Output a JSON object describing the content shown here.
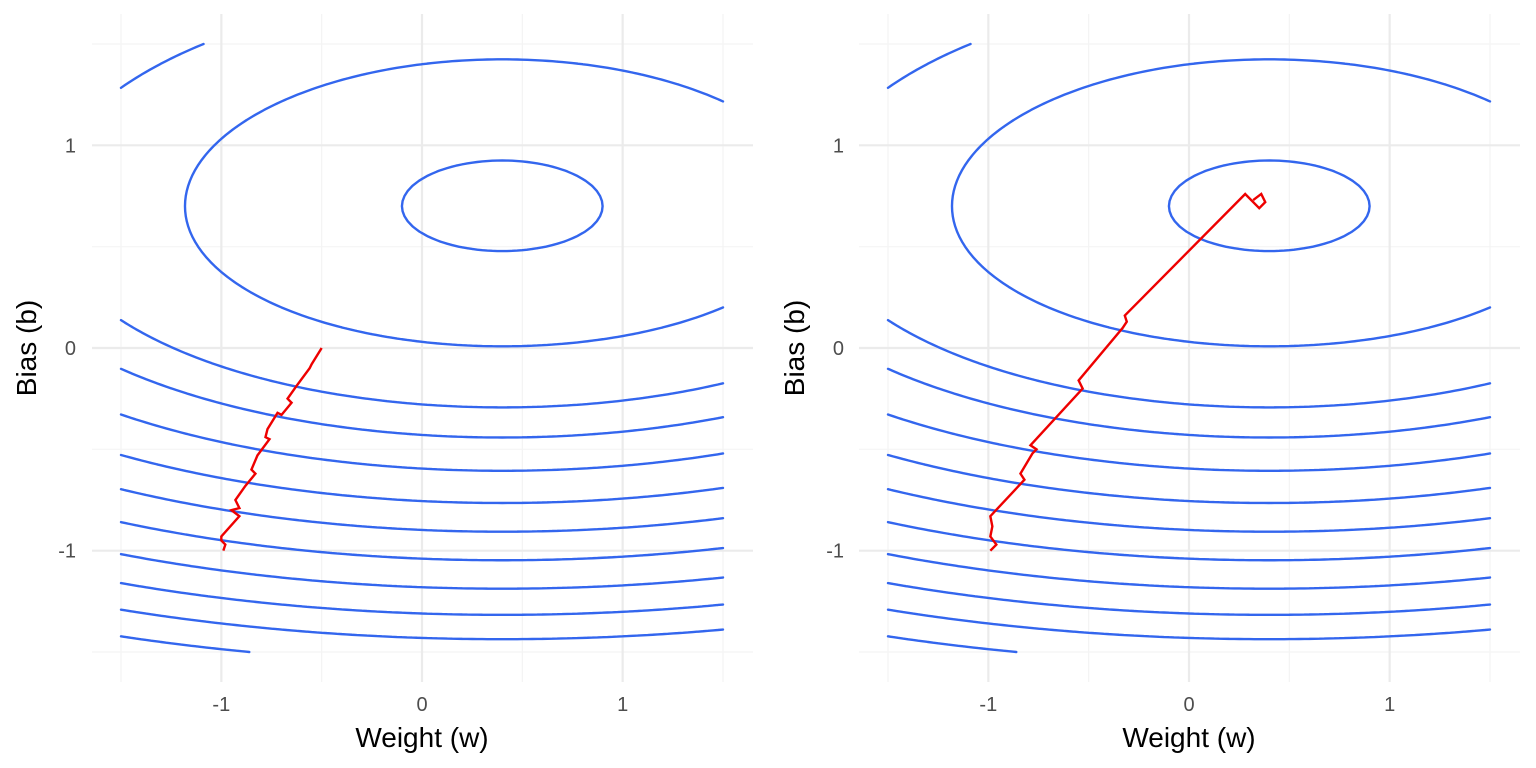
{
  "colors": {
    "contour": "#3366ee",
    "path": "#ee0000",
    "grid_major": "#ebebeb",
    "grid_minor": "#f4f4f4",
    "background": "#ffffff"
  },
  "chart_data": [
    {
      "type": "line",
      "xlabel": "Weight (w)",
      "ylabel": "Bias (b)",
      "xlim": [
        -1.5,
        1.5
      ],
      "ylim": [
        -1.5,
        1.5
      ],
      "x_ticks": [
        -1,
        0,
        1
      ],
      "y_ticks": [
        -1,
        0,
        1
      ],
      "x_tick_labels": [
        "-1",
        "0",
        "1"
      ],
      "y_tick_labels": [
        "-1",
        "0",
        "1"
      ],
      "grid": true,
      "contour_field": {
        "form": "f(w,b) = a*(w - c_w)^2 + (b - c_b)^2 + d*(b - c_b)^3",
        "a": 0.2,
        "c_w": 0.4,
        "c_b": 0.7,
        "d": -0.065,
        "levels": [
          0.05,
          0.5,
          1.05,
          1.4,
          1.85,
          2.35,
          2.85,
          3.4,
          4.0,
          4.6,
          5.2,
          5.85
        ]
      },
      "series": [
        {
          "values": [
            [
              -0.5,
              0.0
            ],
            [
              -0.55,
              -0.08
            ],
            [
              -0.56,
              -0.1
            ],
            [
              -0.62,
              -0.18
            ],
            [
              -0.67,
              -0.25
            ],
            [
              -0.65,
              -0.27
            ],
            [
              -0.7,
              -0.33
            ],
            [
              -0.72,
              -0.32
            ],
            [
              -0.77,
              -0.4
            ],
            [
              -0.78,
              -0.44
            ],
            [
              -0.76,
              -0.45
            ],
            [
              -0.82,
              -0.53
            ],
            [
              -0.85,
              -0.6
            ],
            [
              -0.83,
              -0.62
            ],
            [
              -0.88,
              -0.68
            ],
            [
              -0.93,
              -0.75
            ],
            [
              -0.91,
              -0.79
            ],
            [
              -0.95,
              -0.8
            ],
            [
              -0.91,
              -0.83
            ],
            [
              -1.0,
              -0.93
            ],
            [
              -1.0,
              -0.95
            ],
            [
              -0.98,
              -0.97
            ],
            [
              -0.99,
              -1.0
            ]
          ]
        }
      ]
    },
    {
      "type": "line",
      "xlabel": "Weight (w)",
      "ylabel": "Bias (b)",
      "xlim": [
        -1.5,
        1.5
      ],
      "ylim": [
        -1.5,
        1.5
      ],
      "x_ticks": [
        -1,
        0,
        1
      ],
      "y_ticks": [
        -1,
        0,
        1
      ],
      "x_tick_labels": [
        "-1",
        "0",
        "1"
      ],
      "y_tick_labels": [
        "-1",
        "0",
        "1"
      ],
      "grid": true,
      "contour_field": {
        "form": "f(w,b) = a*(w - c_w)^2 + (b - c_b)^2 + d*(b - c_b)^3",
        "a": 0.2,
        "c_w": 0.4,
        "c_b": 0.7,
        "d": -0.065,
        "levels": [
          0.05,
          0.5,
          1.05,
          1.4,
          1.85,
          2.35,
          2.85,
          3.4,
          4.0,
          4.6,
          5.2,
          5.85
        ]
      },
      "series": [
        {
          "values": [
            [
              -0.99,
              -1.0
            ],
            [
              -0.96,
              -0.97
            ],
            [
              -0.99,
              -0.93
            ],
            [
              -0.98,
              -0.88
            ],
            [
              -0.99,
              -0.83
            ],
            [
              -0.82,
              -0.65
            ],
            [
              -0.84,
              -0.62
            ],
            [
              -0.78,
              -0.52
            ],
            [
              -0.76,
              -0.5
            ],
            [
              -0.79,
              -0.48
            ],
            [
              -0.53,
              -0.2
            ],
            [
              -0.55,
              -0.16
            ],
            [
              -0.33,
              0.1
            ],
            [
              -0.31,
              0.13
            ],
            [
              -0.32,
              0.16
            ],
            [
              0.28,
              0.76
            ],
            [
              0.35,
              0.69
            ],
            [
              0.38,
              0.72
            ],
            [
              0.36,
              0.76
            ],
            [
              0.32,
              0.73
            ]
          ]
        }
      ]
    }
  ]
}
